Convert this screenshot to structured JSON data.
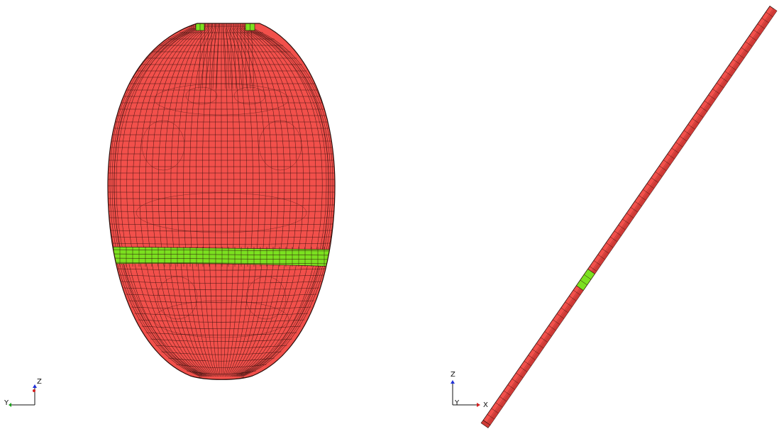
{
  "colors": {
    "element_fill": "#f2504b",
    "element_fill_light": "#f46a63",
    "element_fill_dark": "#cf3a36",
    "selected_fill": "#7be020",
    "selected_fill_dark": "#55b80e",
    "mesh_line": "#2b0d0a",
    "background": "#ffffff",
    "axis_x": "#d42020",
    "axis_y": "#18a018",
    "axis_z": "#2030d8",
    "axis_line": "#101010"
  },
  "left_view": {
    "triad": {
      "y_label": "Y",
      "z_label": "Z"
    }
  },
  "right_view": {
    "triad": {
      "x_label": "X",
      "y_label": "Y",
      "z_label": "Z"
    }
  }
}
